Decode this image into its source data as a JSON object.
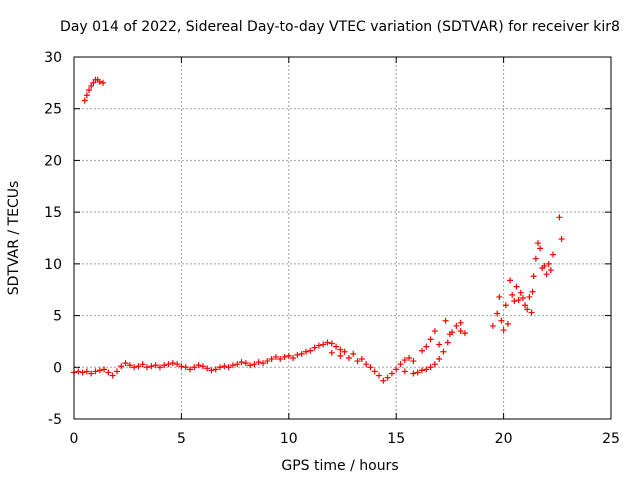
{
  "chart_data": {
    "type": "scatter",
    "title": "Day 014 of 2022, Sidereal Day-to-day VTEC variation (SDTVAR) for receiver kir8",
    "xlabel": "GPS time / hours",
    "ylabel": "SDTVAR / TECUs",
    "xlim": [
      0,
      25
    ],
    "ylim": [
      -5,
      30
    ],
    "xticks": [
      "0",
      "5",
      "10",
      "15",
      "20",
      "25"
    ],
    "yticks": [
      "-5",
      "0",
      "5",
      "10",
      "15",
      "20",
      "25",
      "30"
    ],
    "grid": true,
    "marker": "+",
    "color": "#ff0000",
    "series": [
      {
        "name": "SDTVAR",
        "points": [
          [
            0.0,
            -0.5
          ],
          [
            0.2,
            -0.4
          ],
          [
            0.4,
            -0.5
          ],
          [
            0.6,
            -0.4
          ],
          [
            0.8,
            -0.6
          ],
          [
            1.0,
            -0.4
          ],
          [
            1.2,
            -0.3
          ],
          [
            1.4,
            -0.2
          ],
          [
            1.6,
            -0.5
          ],
          [
            1.8,
            -0.8
          ],
          [
            2.0,
            -0.4
          ],
          [
            2.2,
            0.1
          ],
          [
            2.4,
            0.4
          ],
          [
            2.6,
            0.2
          ],
          [
            2.8,
            0.0
          ],
          [
            3.0,
            0.1
          ],
          [
            3.2,
            0.3
          ],
          [
            3.4,
            0.0
          ],
          [
            3.6,
            0.1
          ],
          [
            3.8,
            0.2
          ],
          [
            4.0,
            0.0
          ],
          [
            4.2,
            0.2
          ],
          [
            4.4,
            0.3
          ],
          [
            4.6,
            0.4
          ],
          [
            4.8,
            0.3
          ],
          [
            5.0,
            0.1
          ],
          [
            5.2,
            0.0
          ],
          [
            5.4,
            -0.2
          ],
          [
            5.6,
            0.0
          ],
          [
            5.8,
            0.2
          ],
          [
            6.0,
            0.1
          ],
          [
            6.2,
            -0.1
          ],
          [
            6.4,
            -0.3
          ],
          [
            6.6,
            -0.2
          ],
          [
            6.8,
            0.0
          ],
          [
            7.0,
            0.1
          ],
          [
            7.2,
            0.0
          ],
          [
            7.4,
            0.2
          ],
          [
            7.6,
            0.3
          ],
          [
            7.8,
            0.5
          ],
          [
            8.0,
            0.4
          ],
          [
            8.2,
            0.2
          ],
          [
            8.4,
            0.3
          ],
          [
            8.6,
            0.5
          ],
          [
            8.8,
            0.4
          ],
          [
            9.0,
            0.6
          ],
          [
            9.2,
            0.8
          ],
          [
            9.4,
            1.0
          ],
          [
            9.6,
            0.8
          ],
          [
            9.8,
            1.0
          ],
          [
            10.0,
            1.1
          ],
          [
            10.2,
            0.9
          ],
          [
            10.4,
            1.2
          ],
          [
            10.6,
            1.3
          ],
          [
            10.8,
            1.5
          ],
          [
            11.0,
            1.6
          ],
          [
            11.2,
            1.9
          ],
          [
            11.4,
            2.1
          ],
          [
            11.6,
            2.2
          ],
          [
            11.8,
            2.4
          ],
          [
            12.0,
            2.3
          ],
          [
            12.2,
            2.0
          ],
          [
            12.4,
            1.7
          ],
          [
            12.6,
            1.5
          ],
          [
            12.0,
            1.4
          ],
          [
            12.4,
            1.1
          ],
          [
            12.8,
            0.9
          ],
          [
            13.0,
            1.3
          ],
          [
            13.2,
            0.6
          ],
          [
            13.4,
            0.8
          ],
          [
            13.6,
            0.3
          ],
          [
            13.8,
            0.0
          ],
          [
            14.0,
            -0.4
          ],
          [
            14.2,
            -0.8
          ],
          [
            14.4,
            -1.3
          ],
          [
            14.6,
            -1.0
          ],
          [
            14.8,
            -0.6
          ],
          [
            15.0,
            -0.2
          ],
          [
            15.2,
            0.3
          ],
          [
            15.4,
            0.7
          ],
          [
            15.6,
            0.9
          ],
          [
            15.8,
            0.6
          ],
          [
            15.4,
            -0.4
          ],
          [
            15.8,
            -0.6
          ],
          [
            16.0,
            -0.5
          ],
          [
            16.2,
            -0.3
          ],
          [
            16.4,
            -0.2
          ],
          [
            16.6,
            0.0
          ],
          [
            16.8,
            0.3
          ],
          [
            17.0,
            0.8
          ],
          [
            17.2,
            1.5
          ],
          [
            17.4,
            2.4
          ],
          [
            17.6,
            3.4
          ],
          [
            17.8,
            4.0
          ],
          [
            18.0,
            3.5
          ],
          [
            18.2,
            3.3
          ],
          [
            16.2,
            1.6
          ],
          [
            16.4,
            2.0
          ],
          [
            16.6,
            2.7
          ],
          [
            16.8,
            3.5
          ],
          [
            17.0,
            2.2
          ],
          [
            17.3,
            4.5
          ],
          [
            17.5,
            3.2
          ],
          [
            18.0,
            4.3
          ],
          [
            19.5,
            4.0
          ],
          [
            19.7,
            5.2
          ],
          [
            19.8,
            6.8
          ],
          [
            19.9,
            4.5
          ],
          [
            20.0,
            3.6
          ],
          [
            20.1,
            6.0
          ],
          [
            20.2,
            4.2
          ],
          [
            20.3,
            8.4
          ],
          [
            20.4,
            7.0
          ],
          [
            20.5,
            6.4
          ],
          [
            20.6,
            7.8
          ],
          [
            20.7,
            6.5
          ],
          [
            20.8,
            7.2
          ],
          [
            20.9,
            6.7
          ],
          [
            21.0,
            6.0
          ],
          [
            21.1,
            5.6
          ],
          [
            21.2,
            6.8
          ],
          [
            21.3,
            5.3
          ],
          [
            21.35,
            7.3
          ],
          [
            21.4,
            8.8
          ],
          [
            21.5,
            10.5
          ],
          [
            21.6,
            12.0
          ],
          [
            21.7,
            11.5
          ],
          [
            21.8,
            9.6
          ],
          [
            21.9,
            9.8
          ],
          [
            22.0,
            9.0
          ],
          [
            22.1,
            10.0
          ],
          [
            22.2,
            9.4
          ],
          [
            22.3,
            10.9
          ],
          [
            22.6,
            14.5
          ],
          [
            22.7,
            12.4
          ],
          [
            0.5,
            25.8
          ],
          [
            0.6,
            26.3
          ],
          [
            0.7,
            26.8
          ],
          [
            0.8,
            27.2
          ],
          [
            0.9,
            27.5
          ],
          [
            1.0,
            27.8
          ],
          [
            1.1,
            27.8
          ],
          [
            1.2,
            27.6
          ],
          [
            1.35,
            27.5
          ]
        ]
      }
    ]
  }
}
